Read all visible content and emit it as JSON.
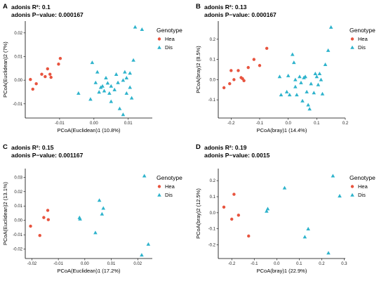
{
  "colors": {
    "Hea": "#e8543f",
    "Dis": "#2eb3cc"
  },
  "chart_data": [
    {
      "type": "scatter",
      "panel": "A",
      "stat_r2": "adonis R²: 0.1",
      "stat_p": "adonis P−value: 0.000167",
      "xlabel": "PCoA(Euclidean)1 (10.8%)",
      "ylabel": "PCoA(Euclidean)2 (7%)",
      "xlim": [
        -0.02,
        0.017
      ],
      "ylim": [
        -0.016,
        0.025
      ],
      "xticks": [
        -0.01,
        0.0,
        0.01
      ],
      "xtick_labels": [
        "-0.01",
        "0.00",
        "0.01"
      ],
      "yticks": [
        -0.01,
        0.0,
        0.01,
        0.02
      ],
      "ytick_labels": [
        "-0.01",
        "0.00",
        "0.01",
        "0.02"
      ],
      "legend_title": "Genotype",
      "series": [
        {
          "name": "Hea",
          "marker": "circle",
          "points": [
            [
              -0.0185,
              0.0003
            ],
            [
              -0.0178,
              -0.0038
            ],
            [
              -0.0168,
              -0.0015
            ],
            [
              -0.0152,
              0.0025
            ],
            [
              -0.0142,
              0.0015
            ],
            [
              -0.0135,
              0.0048
            ],
            [
              -0.0128,
              0.0025
            ],
            [
              -0.0125,
              0.0012
            ],
            [
              -0.0103,
              0.0068
            ],
            [
              -0.0098,
              0.0092
            ]
          ]
        },
        {
          "name": "Dis",
          "marker": "triangle",
          "points": [
            [
              -0.0045,
              -0.0055
            ],
            [
              -0.001,
              -0.008
            ],
            [
              -0.0005,
              0.0075
            ],
            [
              0.0005,
              -0.001
            ],
            [
              0.001,
              0.0035
            ],
            [
              0.0015,
              -0.005
            ],
            [
              0.002,
              -0.003
            ],
            [
              0.0025,
              -0.0025
            ],
            [
              0.003,
              -0.0045
            ],
            [
              0.0035,
              0.001
            ],
            [
              0.004,
              -0.0012
            ],
            [
              0.0045,
              -0.0055
            ],
            [
              0.005,
              -0.0025
            ],
            [
              0.005,
              -0.009
            ],
            [
              0.006,
              -0.004
            ],
            [
              0.0065,
              0.0025
            ],
            [
              0.007,
              -0.001
            ],
            [
              0.0075,
              -0.012
            ],
            [
              0.0085,
              0.0
            ],
            [
              0.009,
              0.0035
            ],
            [
              0.0095,
              0.001
            ],
            [
              0.0095,
              -0.0055
            ],
            [
              0.0105,
              -0.003
            ],
            [
              0.0105,
              0.003
            ],
            [
              0.011,
              -0.0075
            ],
            [
              0.0115,
              0.0085
            ],
            [
              0.012,
              0.0225
            ],
            [
              0.014,
              0.0215
            ],
            [
              0.0085,
              -0.0145
            ]
          ]
        }
      ]
    },
    {
      "type": "scatter",
      "panel": "B",
      "stat_r2": "adonis R²: 0.13",
      "stat_p": "adonis P−value: 0.000167",
      "xlabel": "PCoA(bray)1 (14.4%)",
      "ylabel": "PCoA(bray)2 (8.5%)",
      "xlim": [
        -0.245,
        0.2
      ],
      "ylim": [
        -0.19,
        0.29
      ],
      "xticks": [
        -0.2,
        -0.1,
        0.0,
        0.1,
        0.2
      ],
      "xtick_labels": [
        "-0.2",
        "-0.1",
        "0.0",
        "0.1",
        "0.2"
      ],
      "yticks": [
        -0.1,
        0.0,
        0.1,
        0.2
      ],
      "ytick_labels": [
        "-0.1",
        "0.0",
        "0.1",
        "0.2"
      ],
      "legend_title": "Genotype",
      "series": [
        {
          "name": "Hea",
          "marker": "circle",
          "points": [
            [
              -0.225,
              -0.04
            ],
            [
              -0.205,
              -0.02
            ],
            [
              -0.2,
              0.045
            ],
            [
              -0.19,
              0.0
            ],
            [
              -0.175,
              0.045
            ],
            [
              -0.165,
              0.01
            ],
            [
              -0.16,
              0.005
            ],
            [
              -0.155,
              -0.005
            ],
            [
              -0.14,
              0.06
            ],
            [
              -0.12,
              0.1
            ],
            [
              -0.1,
              0.07
            ],
            [
              -0.075,
              0.155
            ]
          ]
        },
        {
          "name": "Dis",
          "marker": "triangle",
          "points": [
            [
              -0.03,
              0.015
            ],
            [
              -0.025,
              -0.075
            ],
            [
              -0.005,
              -0.06
            ],
            [
              0.0,
              0.02
            ],
            [
              0.005,
              -0.075
            ],
            [
              0.015,
              0.125
            ],
            [
              0.02,
              0.085
            ],
            [
              0.025,
              0.0
            ],
            [
              0.025,
              -0.035
            ],
            [
              0.03,
              -0.075
            ],
            [
              0.04,
              0.015
            ],
            [
              0.045,
              -0.015
            ],
            [
              0.05,
              -0.105
            ],
            [
              0.055,
              0.01
            ],
            [
              0.06,
              0.015
            ],
            [
              0.065,
              -0.06
            ],
            [
              0.07,
              -0.125
            ],
            [
              0.075,
              -0.145
            ],
            [
              0.08,
              -0.02
            ],
            [
              0.09,
              -0.065
            ],
            [
              0.095,
              0.03
            ],
            [
              0.1,
              0.015
            ],
            [
              0.105,
              -0.025
            ],
            [
              0.11,
              0.03
            ],
            [
              0.115,
              0.0
            ],
            [
              0.12,
              -0.07
            ],
            [
              0.13,
              0.075
            ],
            [
              0.14,
              0.145
            ],
            [
              0.15,
              0.26
            ]
          ]
        }
      ]
    },
    {
      "type": "scatter",
      "panel": "C",
      "stat_r2": "adonis R²: 0.15",
      "stat_p": "adonis P−value: 0.001167",
      "xlabel": "PCoA(Euclidean)1 (17.2%)",
      "ylabel": "PCoA(Euclidean)2 (13.1%)",
      "xlim": [
        -0.0225,
        0.0255
      ],
      "ylim": [
        -0.0265,
        0.036
      ],
      "xticks": [
        -0.02,
        -0.01,
        0.0,
        0.01,
        0.02
      ],
      "xtick_labels": [
        "-0.02",
        "-0.01",
        "0.00",
        "0.01",
        "0.02"
      ],
      "yticks": [
        -0.02,
        -0.01,
        0.0,
        0.01,
        0.02,
        0.03
      ],
      "ytick_labels": [
        "-0.02",
        "-0.01",
        "0.00",
        "0.01",
        "0.02",
        "0.03"
      ],
      "legend_title": "Genotype",
      "series": [
        {
          "name": "Hea",
          "marker": "circle",
          "points": [
            [
              -0.0205,
              -0.004
            ],
            [
              -0.017,
              -0.0105
            ],
            [
              -0.0155,
              0.002
            ],
            [
              -0.014,
              0.007
            ],
            [
              -0.0138,
              0.0005
            ]
          ]
        },
        {
          "name": "Dis",
          "marker": "triangle",
          "points": [
            [
              -0.002,
              0.002
            ],
            [
              -0.0018,
              0.001
            ],
            [
              0.004,
              -0.0085
            ],
            [
              0.0055,
              0.014
            ],
            [
              0.0065,
              0.0045
            ],
            [
              0.007,
              0.0085
            ],
            [
              0.0215,
              -0.024
            ],
            [
              0.0225,
              0.031
            ],
            [
              0.024,
              -0.0165
            ]
          ]
        }
      ]
    },
    {
      "type": "scatter",
      "panel": "D",
      "stat_r2": "adonis R²: 0.19",
      "stat_p": "adonis P−value: 0.0015",
      "xlabel": "PCoA(bray)1 (22.9%)",
      "ylabel": "PCoA(bray)2 (12.5%)",
      "xlim": [
        -0.26,
        0.305
      ],
      "ylim": [
        -0.285,
        0.275
      ],
      "xticks": [
        -0.2,
        -0.1,
        0.0,
        0.1,
        0.2,
        0.3
      ],
      "xtick_labels": [
        "-0.2",
        "-0.1",
        "0.0",
        "0.1",
        "0.2",
        "0.3"
      ],
      "yticks": [
        -0.2,
        -0.1,
        0.0,
        0.1,
        0.2
      ],
      "ytick_labels": [
        "-0.2",
        "-0.1",
        "0.0",
        "0.1",
        "0.2"
      ],
      "legend_title": "Genotype",
      "series": [
        {
          "name": "Hea",
          "marker": "circle",
          "points": [
            [
              -0.235,
              0.035
            ],
            [
              -0.2,
              -0.04
            ],
            [
              -0.19,
              0.115
            ],
            [
              -0.17,
              -0.015
            ],
            [
              -0.125,
              -0.145
            ]
          ]
        },
        {
          "name": "Dis",
          "marker": "triangle",
          "points": [
            [
              -0.045,
              0.01
            ],
            [
              -0.04,
              0.025
            ],
            [
              0.035,
              0.155
            ],
            [
              0.125,
              -0.15
            ],
            [
              0.14,
              -0.1
            ],
            [
              0.23,
              -0.25
            ],
            [
              0.25,
              0.23
            ],
            [
              0.28,
              0.105
            ]
          ]
        }
      ]
    }
  ]
}
